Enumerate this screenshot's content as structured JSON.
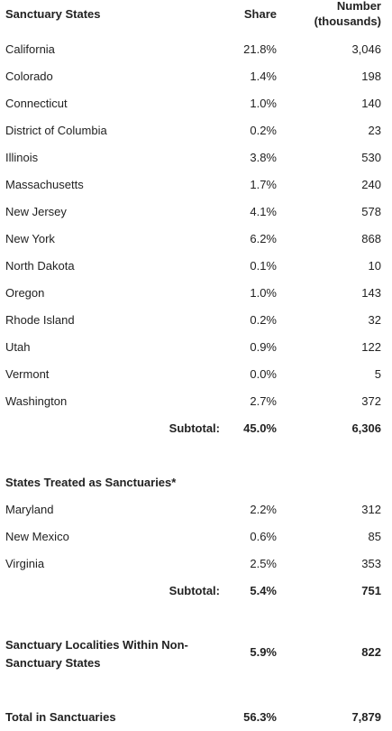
{
  "header": {
    "col_name": "Sanctuary States",
    "col_share": "Share",
    "col_number_line1": "Number",
    "col_number_line2": "(thousands)"
  },
  "sanctuary_states": [
    {
      "name": "California",
      "share": "21.8%",
      "number": "3,046"
    },
    {
      "name": "Colorado",
      "share": "1.4%",
      "number": "198"
    },
    {
      "name": "Connecticut",
      "share": "1.0%",
      "number": "140"
    },
    {
      "name": "District of Columbia",
      "share": "0.2%",
      "number": "23"
    },
    {
      "name": "Illinois",
      "share": "3.8%",
      "number": "530"
    },
    {
      "name": "Massachusetts",
      "share": "1.7%",
      "number": "240"
    },
    {
      "name": "New Jersey",
      "share": "4.1%",
      "number": "578"
    },
    {
      "name": "New York",
      "share": "6.2%",
      "number": "868"
    },
    {
      "name": "North Dakota",
      "share": "0.1%",
      "number": "10"
    },
    {
      "name": "Oregon",
      "share": "1.0%",
      "number": "143"
    },
    {
      "name": "Rhode Island",
      "share": "0.2%",
      "number": "32"
    },
    {
      "name": "Utah",
      "share": "0.9%",
      "number": "122"
    },
    {
      "name": "Vermont",
      "share": "0.0%",
      "number": "5"
    },
    {
      "name": "Washington",
      "share": "2.7%",
      "number": "372"
    }
  ],
  "sanctuary_subtotal": {
    "label": "Subtotal:",
    "share": "45.0%",
    "number": "6,306"
  },
  "treated_heading": "States Treated as Sanctuaries*",
  "treated_states": [
    {
      "name": "Maryland",
      "share": "2.2%",
      "number": "312"
    },
    {
      "name": "New Mexico",
      "share": "0.6%",
      "number": "85"
    },
    {
      "name": "Virginia",
      "share": "2.5%",
      "number": "353"
    }
  ],
  "treated_subtotal": {
    "label": "Subtotal:",
    "share": "5.4%",
    "number": "751"
  },
  "localities": {
    "line1": "Sanctuary Localities Within Non-",
    "line2": "Sanctuary States",
    "share": "5.9%",
    "number": "822"
  },
  "total": {
    "label": "Total in Sanctuaries",
    "share": "56.3%",
    "number": "7,879"
  }
}
